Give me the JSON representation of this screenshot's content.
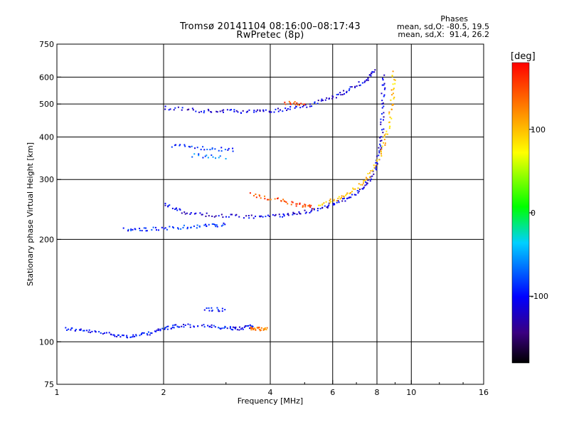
{
  "chart_data": {
    "type": "scatter",
    "title": "Tromsø 20141104 08:16:00–08:17:43",
    "subtitle": "RwPretec (8p)",
    "xlabel": "Frequency [MHz]",
    "ylabel": "Stationary phase Virtual Height [km]",
    "x_scale": "log",
    "y_scale": "log",
    "xlim": [
      1,
      16
    ],
    "ylim": [
      75,
      750
    ],
    "x_ticks": [
      "1",
      "2",
      "4",
      "6",
      "8",
      "10",
      "16"
    ],
    "y_ticks": [
      "75",
      "100",
      "200",
      "300",
      "400",
      "500",
      "600",
      "750"
    ],
    "x_grid": [
      2,
      4,
      6,
      8,
      10
    ],
    "y_grid": [
      100,
      200,
      300,
      400,
      500,
      600
    ],
    "grid": true,
    "colorbar": {
      "label": "[deg]",
      "ticks": [
        "100",
        "0",
        "-100"
      ],
      "range": [
        -180,
        180
      ],
      "colormap": "rainbow"
    },
    "stats": {
      "title": "Phases",
      "o_line": "mean, sd,O: -80.5, 19.5",
      "x_line": "mean, sd,X:  91.4, 26.2"
    },
    "traces": [
      {
        "points": [
          [
            1.05,
            110
          ],
          [
            1.2,
            108
          ],
          [
            1.4,
            106
          ],
          [
            1.6,
            104
          ],
          [
            1.8,
            106
          ],
          [
            2.0,
            110
          ],
          [
            2.2,
            112
          ],
          [
            2.6,
            112
          ],
          [
            3.0,
            110
          ],
          [
            3.3,
            110
          ],
          [
            3.6,
            112
          ]
        ],
        "phase": -100
      },
      {
        "points": [
          [
            3.5,
            110
          ],
          [
            3.7,
            110
          ],
          [
            3.9,
            109
          ]
        ],
        "phase": 130
      },
      {
        "points": [
          [
            1.55,
            215
          ],
          [
            1.8,
            215
          ],
          [
            2.2,
            218
          ],
          [
            2.6,
            220
          ],
          [
            3.0,
            222
          ]
        ],
        "phase": -90
      },
      {
        "points": [
          [
            2.0,
            255
          ],
          [
            2.3,
            240
          ],
          [
            2.8,
            236
          ],
          [
            3.5,
            234
          ],
          [
            4.2,
            236
          ],
          [
            4.8,
            240
          ],
          [
            5.5,
            248
          ],
          [
            6.2,
            258
          ],
          [
            7.0,
            275
          ],
          [
            7.6,
            300
          ],
          [
            8.0,
            340
          ],
          [
            8.2,
            400
          ],
          [
            8.3,
            500
          ],
          [
            8.3,
            620
          ]
        ],
        "phase": -110
      },
      {
        "points": [
          [
            3.5,
            272
          ],
          [
            4.2,
            262
          ],
          [
            4.8,
            254
          ],
          [
            5.3,
            250
          ]
        ],
        "phase": 150
      },
      {
        "points": [
          [
            5.5,
            255
          ],
          [
            6.2,
            265
          ],
          [
            6.9,
            282
          ],
          [
            7.6,
            310
          ],
          [
            8.2,
            360
          ],
          [
            8.6,
            430
          ],
          [
            8.8,
            520
          ],
          [
            8.9,
            630
          ]
        ],
        "phase": 100
      },
      {
        "points": [
          [
            2.0,
            490
          ],
          [
            2.5,
            480
          ],
          [
            3.0,
            478
          ],
          [
            3.6,
            478
          ],
          [
            4.2,
            482
          ],
          [
            5.0,
            495
          ],
          [
            5.8,
            520
          ],
          [
            6.6,
            550
          ],
          [
            7.4,
            590
          ],
          [
            7.9,
            630
          ]
        ],
        "phase": -110
      },
      {
        "points": [
          [
            4.4,
            505
          ],
          [
            5.0,
            505
          ]
        ],
        "phase": 150
      },
      {
        "points": [
          [
            2.1,
            380
          ],
          [
            2.6,
            372
          ],
          [
            3.2,
            368
          ]
        ],
        "phase": -90
      },
      {
        "points": [
          [
            2.4,
            355
          ],
          [
            3.0,
            350
          ]
        ],
        "phase": -70
      },
      {
        "points": [
          [
            2.6,
            125
          ],
          [
            3.0,
            125
          ]
        ],
        "phase": -100
      }
    ]
  }
}
